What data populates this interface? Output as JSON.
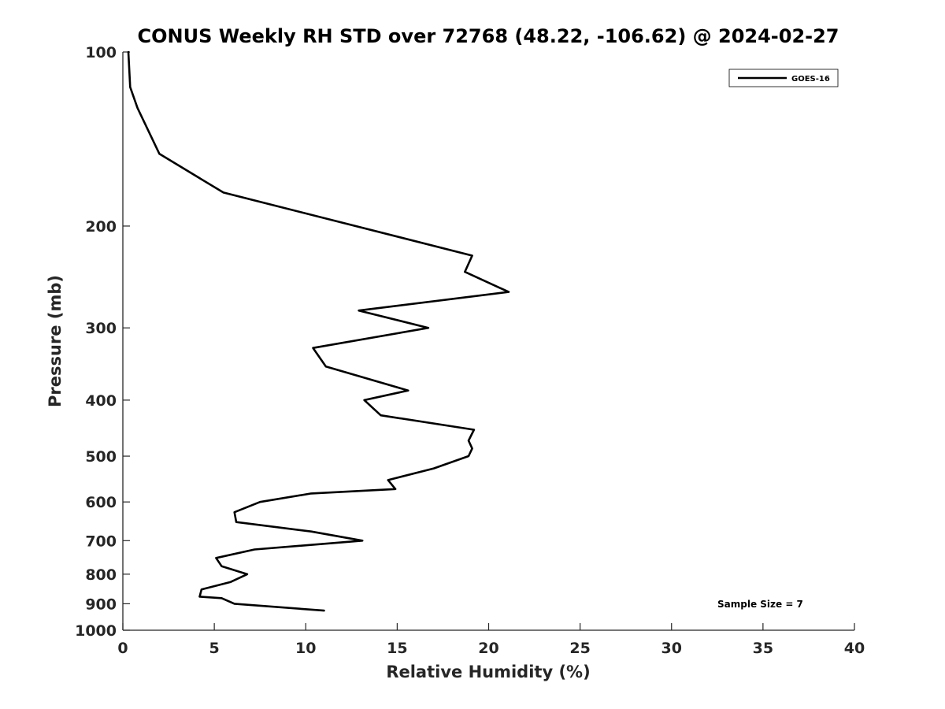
{
  "chart_data": {
    "type": "line",
    "title": "CONUS Weekly RH STD over 72768 (48.22, -106.62) @ 2024-02-27",
    "xlabel": "Relative Humidity (%)",
    "ylabel": "Pressure (mb)",
    "xlim": [
      0,
      40
    ],
    "ylim": [
      100,
      1000
    ],
    "y_scale": "log",
    "y_reversed": true,
    "x_ticks": [
      "0",
      "5",
      "10",
      "15",
      "20",
      "25",
      "30",
      "35",
      "40"
    ],
    "y_ticks": [
      "100",
      "200",
      "300",
      "400",
      "500",
      "600",
      "700",
      "800",
      "900",
      "1000"
    ],
    "grid": false,
    "legend_position": "top-right",
    "annotation": "Sample Size = 7",
    "series": [
      {
        "name": "GOES-16",
        "color": "#000000",
        "points": [
          [
            0.3,
            100
          ],
          [
            0.4,
            115
          ],
          [
            0.8,
            125
          ],
          [
            2.0,
            150
          ],
          [
            5.5,
            175
          ],
          [
            19.1,
            225
          ],
          [
            18.7,
            240
          ],
          [
            21.1,
            260
          ],
          [
            12.9,
            280
          ],
          [
            16.7,
            300
          ],
          [
            10.4,
            325
          ],
          [
            11.1,
            350
          ],
          [
            15.6,
            385
          ],
          [
            13.2,
            400
          ],
          [
            14.1,
            425
          ],
          [
            19.2,
            450
          ],
          [
            18.9,
            470
          ],
          [
            19.1,
            485
          ],
          [
            18.9,
            500
          ],
          [
            17.0,
            525
          ],
          [
            14.5,
            550
          ],
          [
            14.9,
            570
          ],
          [
            10.3,
            580
          ],
          [
            7.5,
            600
          ],
          [
            6.1,
            625
          ],
          [
            6.2,
            650
          ],
          [
            10.3,
            675
          ],
          [
            13.1,
            700
          ],
          [
            7.2,
            725
          ],
          [
            5.1,
            750
          ],
          [
            5.4,
            775
          ],
          [
            6.8,
            800
          ],
          [
            5.9,
            825
          ],
          [
            4.3,
            850
          ],
          [
            4.2,
            875
          ],
          [
            5.4,
            880
          ],
          [
            6.1,
            900
          ],
          [
            11.0,
            925
          ]
        ]
      }
    ]
  }
}
